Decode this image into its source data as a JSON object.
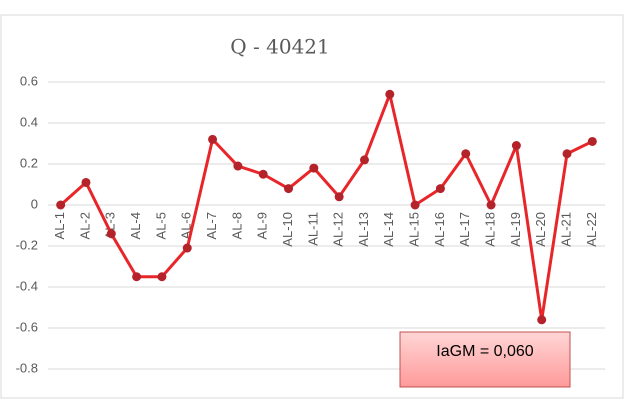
{
  "chart_data": {
    "type": "line",
    "title": "Q - 40421",
    "categories": [
      "AL-1",
      "AL-2",
      "AL-3",
      "AL-4",
      "AL-5",
      "AL-6",
      "AL-7",
      "AL-8",
      "AL-9",
      "AL-10",
      "AL-11",
      "AL-12",
      "AL-13",
      "AL-14",
      "AL-15",
      "AL-16",
      "AL-17",
      "AL-18",
      "AL-19",
      "AL-20",
      "AL-21",
      "AL-22"
    ],
    "series": [
      {
        "name": "Q - 40421",
        "color": "#e8262a",
        "values": [
          0.0,
          0.11,
          -0.14,
          -0.35,
          -0.35,
          -0.21,
          0.32,
          0.19,
          0.15,
          0.08,
          0.18,
          0.04,
          0.22,
          0.54,
          0.0,
          0.08,
          0.25,
          0.0,
          0.29,
          -0.56,
          0.25,
          0.31
        ]
      }
    ],
    "marker_color": "#b5232a",
    "ylim": [
      -0.8,
      0.6
    ],
    "yticks": [
      -0.8,
      -0.6,
      -0.4,
      -0.2,
      0,
      0.2,
      0.4,
      0.6
    ],
    "grid": true,
    "annotation": "IaGM = 0,060"
  }
}
